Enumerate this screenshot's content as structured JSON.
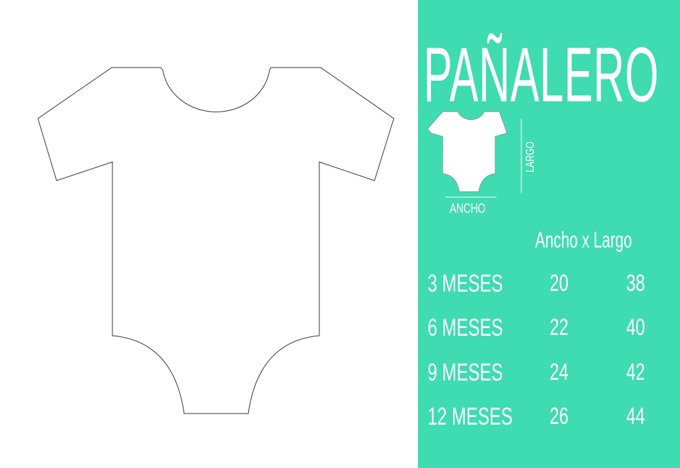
{
  "title": "PAÑALERO",
  "diagram": {
    "width_label": "Ancho",
    "length_label": "Largo"
  },
  "header": "Ancho x Largo",
  "rows": [
    {
      "size": "3 meses",
      "ancho": "20",
      "largo": "38"
    },
    {
      "size": "6 meses",
      "ancho": "22",
      "largo": "40"
    },
    {
      "size": "9 meses",
      "ancho": "24",
      "largo": "42"
    },
    {
      "size": "12 meses",
      "ancho": "26",
      "largo": "44"
    }
  ],
  "colors": {
    "panel": "#3fdbb1",
    "text": "#ffffff",
    "outline": "#333333"
  }
}
